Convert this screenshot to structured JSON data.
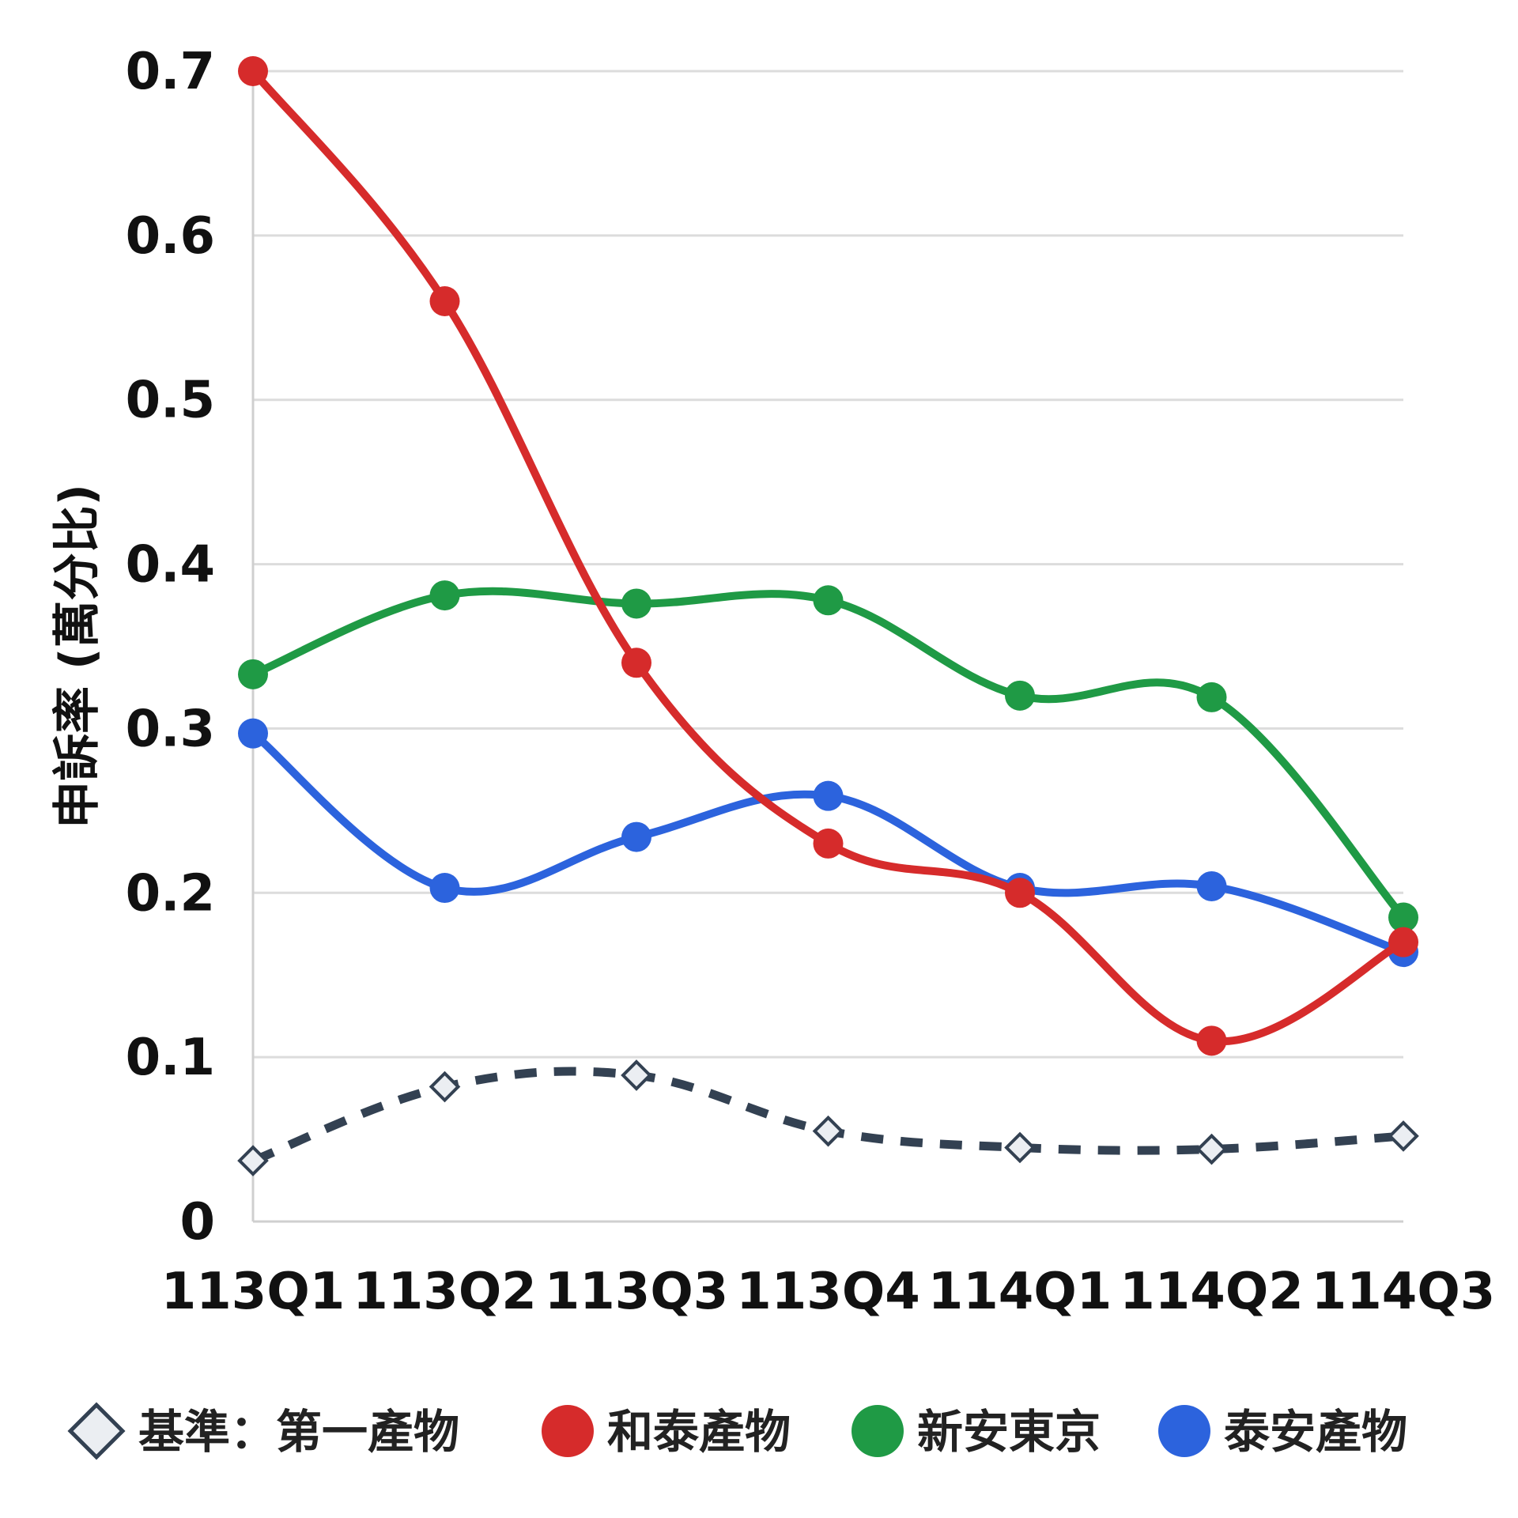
{
  "chart_data": {
    "type": "line",
    "title": "",
    "xlabel": "",
    "ylabel": "申訴率 (萬分比)",
    "categories": [
      "113Q1",
      "113Q2",
      "113Q3",
      "113Q4",
      "114Q1",
      "114Q2",
      "114Q3"
    ],
    "ylim": [
      0,
      0.7
    ],
    "yticks": [
      "0",
      "0.1",
      "0.2",
      "0.3",
      "0.4",
      "0.5",
      "0.6",
      "0.7"
    ],
    "grid": true,
    "legend_position": "bottom",
    "series": [
      {
        "name": "和泰產物",
        "color": "#d62b2b",
        "style": "solid",
        "marker": "circle",
        "values": [
          0.7,
          0.56,
          0.34,
          0.23,
          0.2,
          0.11,
          0.17
        ]
      },
      {
        "name": "新安東京",
        "color": "#1f9a45",
        "style": "solid",
        "marker": "circle",
        "values": [
          0.333,
          0.381,
          0.376,
          0.378,
          0.32,
          0.319,
          0.185
        ]
      },
      {
        "name": "泰安產物",
        "color": "#2c63dd",
        "style": "solid",
        "marker": "circle",
        "values": [
          0.297,
          0.203,
          0.234,
          0.259,
          0.203,
          0.204,
          0.164
        ]
      },
      {
        "name": "基準：第一產物",
        "color": "#334152",
        "style": "dashed",
        "marker": "diamond",
        "values": [
          0.037,
          0.082,
          0.089,
          0.055,
          0.045,
          0.044,
          0.052
        ]
      }
    ],
    "legend_order": [
      3,
      0,
      1,
      2
    ]
  }
}
